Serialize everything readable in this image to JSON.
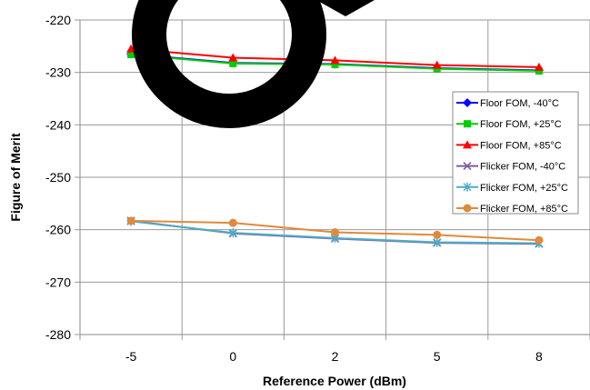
{
  "chart_data": {
    "type": "line",
    "title": "",
    "xlabel": "Reference Power (dBm)",
    "ylabel": "Figure of Merit",
    "categories": [
      "-5",
      "0",
      "2",
      "5",
      "8"
    ],
    "yticks": [
      "-220",
      "-230",
      "-240",
      "-250",
      "-260",
      "-270",
      "-280"
    ],
    "ylim": [
      -280,
      -220
    ],
    "grid": true,
    "legend_position": "right",
    "series": [
      {
        "name": "Floor FOM, -40°C",
        "color": "#0000ff",
        "marker": "diamond",
        "values": [
          -226.5,
          -228.2,
          -228.4,
          -229.2,
          -229.6
        ]
      },
      {
        "name": "Floor FOM, +25°C",
        "color": "#00cc00",
        "marker": "square",
        "values": [
          -226.6,
          -228.3,
          -228.5,
          -229.3,
          -229.7
        ]
      },
      {
        "name": "Floor FOM, +85°C",
        "color": "#ff0000",
        "marker": "triangle",
        "values": [
          -225.5,
          -227.2,
          -227.7,
          -228.6,
          -229.0
        ]
      },
      {
        "name": "Flicker FOM, -40°C",
        "color": "#7f5aa2",
        "marker": "x",
        "values": [
          -258.3,
          -260.7,
          -261.7,
          -262.5,
          -262.7
        ]
      },
      {
        "name": "Flicker FOM, +25°C",
        "color": "#4bacc6",
        "marker": "star",
        "values": [
          -258.4,
          -260.6,
          -261.6,
          -262.4,
          -262.6
        ]
      },
      {
        "name": "Flicker FOM, +85°C",
        "color": "#e08a3c",
        "marker": "circle",
        "values": [
          -258.3,
          -258.7,
          -260.5,
          -261.0,
          -262.0
        ]
      }
    ]
  }
}
